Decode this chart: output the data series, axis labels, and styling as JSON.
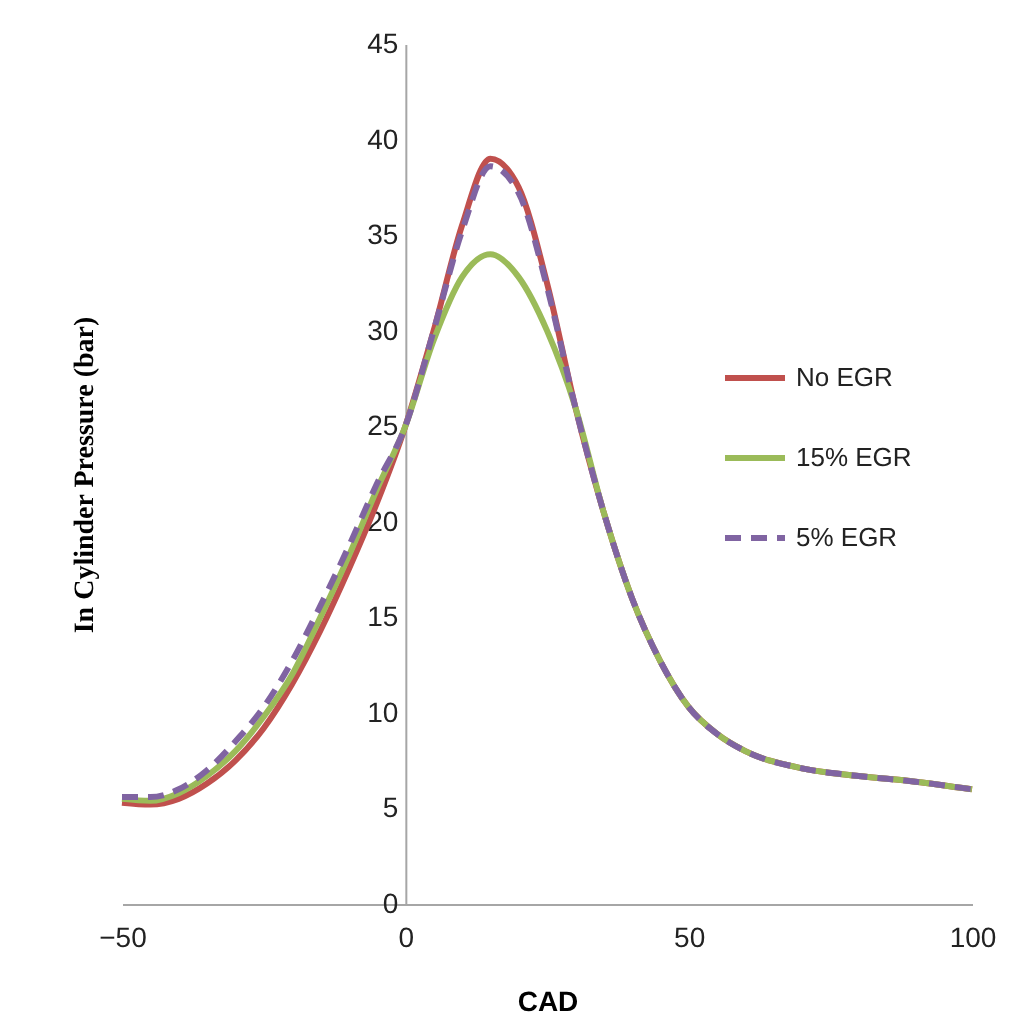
{
  "chart_data": {
    "type": "line",
    "xlabel": "CAD",
    "ylabel": "In Cylinder Pressure (bar)",
    "x": [
      -50,
      -45,
      -40,
      -35,
      -30,
      -25,
      -20,
      -15,
      -10,
      -5,
      0,
      5,
      10,
      15,
      20,
      25,
      30,
      35,
      40,
      45,
      50,
      55,
      60,
      70,
      80,
      90,
      100
    ],
    "series": [
      {
        "name": "No EGR",
        "color": "#c0504d",
        "line_style": "solid",
        "values": [
          5.3,
          5.2,
          5.5,
          6.3,
          7.5,
          9.2,
          11.5,
          14.3,
          17.5,
          21,
          25,
          30,
          35.5,
          39,
          37.5,
          32.5,
          26,
          20.5,
          16,
          12.7,
          10.3,
          8.9,
          8,
          7.1,
          6.7,
          6.4,
          6
        ]
      },
      {
        "name": "15% EGR",
        "color": "#9bbb59",
        "line_style": "solid",
        "values": [
          5.5,
          5.4,
          5.8,
          6.7,
          8,
          9.8,
          12,
          15,
          18.2,
          21.7,
          25,
          29.5,
          32.8,
          34,
          32.8,
          30,
          26,
          20.5,
          16,
          12.7,
          10.3,
          8.9,
          8,
          7.1,
          6.7,
          6.4,
          6
        ]
      },
      {
        "name": "5% EGR",
        "color": "#8064a2",
        "line_style": "dashed",
        "values": [
          5.6,
          5.6,
          6,
          7,
          8.5,
          10.3,
          12.7,
          15.6,
          18.7,
          22,
          25,
          30,
          35.2,
          38.6,
          37.2,
          32.3,
          26,
          20.5,
          16,
          12.7,
          10.3,
          8.9,
          8,
          7.1,
          6.7,
          6.4,
          6
        ]
      }
    ],
    "xlim": [
      -50,
      100
    ],
    "xticks": [
      -50,
      0,
      50,
      100
    ],
    "ylim": [
      0,
      45
    ],
    "yticks": [
      0,
      5,
      10,
      15,
      20,
      25,
      30,
      35,
      40,
      45
    ],
    "grid": false,
    "legend": "right",
    "marker": "none"
  }
}
